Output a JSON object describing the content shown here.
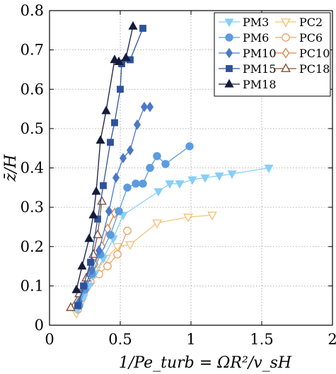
{
  "chart_data": {
    "type": "line",
    "title": "",
    "xlabel": "1/Pe_turb = ΩR²/v_sH",
    "ylabel": "z̄/H",
    "xlim": [
      0,
      2
    ],
    "ylim": [
      0,
      0.8
    ],
    "xticks": [
      "0",
      "0.5",
      "1",
      "1.5",
      "2"
    ],
    "yticks": [
      "0",
      "0.1",
      "0.2",
      "0.3",
      "0.4",
      "0.5",
      "0.6",
      "0.7",
      "0.8"
    ],
    "grid": true,
    "legend_position": "top-right",
    "series": [
      {
        "name": "PM3",
        "color": "#87cef8",
        "marker": "triangle-down",
        "filled": true,
        "x": [
          0.2,
          0.24,
          0.28,
          0.32,
          0.38,
          0.45,
          0.52,
          0.77,
          0.85,
          0.92,
          1.01,
          1.1,
          1.2,
          1.29,
          1.55
        ],
        "y": [
          0.04,
          0.07,
          0.1,
          0.13,
          0.17,
          0.22,
          0.28,
          0.34,
          0.36,
          0.36,
          0.37,
          0.375,
          0.38,
          0.385,
          0.4
        ]
      },
      {
        "name": "PM6",
        "color": "#5b9be0",
        "marker": "circle",
        "filled": true,
        "x": [
          0.21,
          0.25,
          0.3,
          0.36,
          0.43,
          0.49,
          0.55,
          0.61,
          0.66,
          0.71,
          0.76,
          0.82,
          0.99
        ],
        "y": [
          0.05,
          0.09,
          0.13,
          0.18,
          0.23,
          0.29,
          0.35,
          0.36,
          0.36,
          0.4,
          0.43,
          0.41,
          0.455
        ]
      },
      {
        "name": "PM10",
        "color": "#4a79c6",
        "marker": "diamond",
        "filled": true,
        "x": [
          0.21,
          0.25,
          0.3,
          0.35,
          0.42,
          0.47,
          0.52,
          0.57,
          0.62,
          0.67,
          0.71
        ],
        "y": [
          0.06,
          0.1,
          0.14,
          0.19,
          0.29,
          0.375,
          0.425,
          0.445,
          0.51,
          0.555,
          0.555
        ]
      },
      {
        "name": "PM15",
        "color": "#2d529a",
        "marker": "square",
        "filled": true,
        "x": [
          0.2,
          0.24,
          0.29,
          0.34,
          0.38,
          0.43,
          0.46,
          0.5,
          0.51,
          0.57,
          0.66
        ],
        "y": [
          0.05,
          0.1,
          0.16,
          0.27,
          0.355,
          0.465,
          0.515,
          0.6,
          0.665,
          0.675,
          0.755
        ]
      },
      {
        "name": "PM18",
        "color": "#141c3c",
        "marker": "triangle-up",
        "filled": true,
        "x": [
          0.19,
          0.23,
          0.28,
          0.31,
          0.33,
          0.36,
          0.4,
          0.46,
          0.49,
          0.54,
          0.59
        ],
        "y": [
          0.09,
          0.15,
          0.22,
          0.28,
          0.34,
          0.47,
          0.545,
          0.675,
          0.67,
          0.68,
          0.76
        ]
      },
      {
        "name": "PC2",
        "color": "#f5c27a",
        "marker": "triangle-down",
        "filled": false,
        "x": [
          0.19,
          0.23,
          0.28,
          0.33,
          0.4,
          0.48,
          0.57,
          0.76,
          0.98,
          1.15
        ],
        "y": [
          0.03,
          0.06,
          0.1,
          0.14,
          0.17,
          0.2,
          0.205,
          0.26,
          0.275,
          0.28
        ]
      },
      {
        "name": "PC6",
        "color": "#f0a36a",
        "marker": "circle",
        "filled": false,
        "x": [
          0.2,
          0.24,
          0.29,
          0.35,
          0.41,
          0.48,
          0.55
        ],
        "y": [
          0.04,
          0.08,
          0.11,
          0.13,
          0.15,
          0.18,
          0.24
        ]
      },
      {
        "name": "PC10",
        "color": "#d9884e",
        "marker": "diamond",
        "filled": false,
        "x": [
          0.2,
          0.23,
          0.27,
          0.32,
          0.37,
          0.41,
          0.46
        ],
        "y": [
          0.05,
          0.08,
          0.12,
          0.155,
          0.2,
          0.245,
          0.285
        ]
      },
      {
        "name": "PC18",
        "color": "#8a4f33",
        "marker": "triangle-up",
        "filled": false,
        "x": [
          0.15,
          0.21,
          0.26,
          0.31,
          0.34,
          0.37
        ],
        "y": [
          0.045,
          0.08,
          0.12,
          0.18,
          0.23,
          0.315
        ]
      }
    ]
  }
}
